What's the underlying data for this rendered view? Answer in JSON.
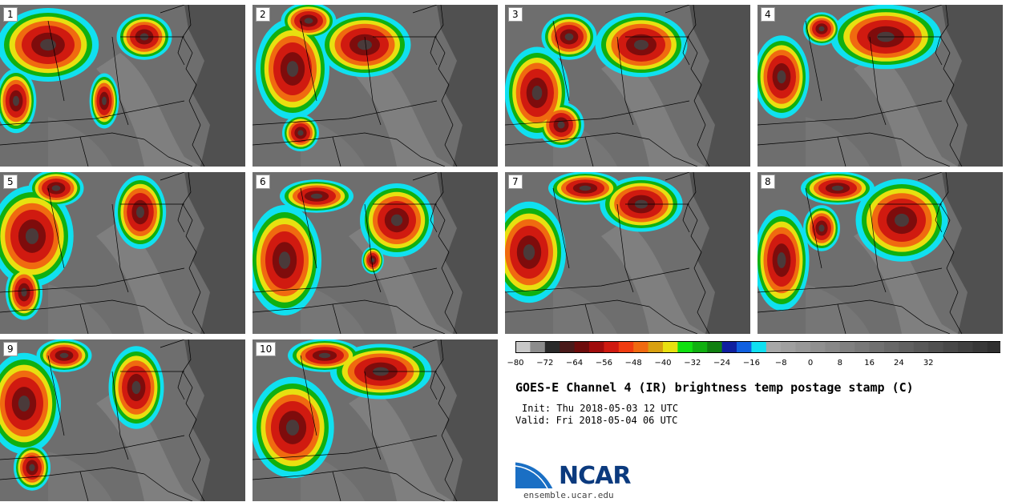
{
  "panels": [
    {
      "label": "1"
    },
    {
      "label": "2"
    },
    {
      "label": "3"
    },
    {
      "label": "4"
    },
    {
      "label": "5"
    },
    {
      "label": "6"
    },
    {
      "label": "7"
    },
    {
      "label": "8"
    },
    {
      "label": "9"
    },
    {
      "label": "10"
    }
  ],
  "colorbar": {
    "colors": [
      "#c8c8c8",
      "#8c8c8c",
      "#2a2a2a",
      "#4a1a1a",
      "#6e0c0c",
      "#a00c0c",
      "#d01a10",
      "#f03c10",
      "#f06a10",
      "#d8a010",
      "#e8e010",
      "#10e010",
      "#10b010",
      "#108010",
      "#1020a0",
      "#1060e0",
      "#10e0f0",
      "#a8a8a8",
      "#a0a0a0",
      "#989898",
      "#909090",
      "#888888",
      "#808080",
      "#787878",
      "#707070",
      "#686868",
      "#606060",
      "#585858",
      "#505050",
      "#484848",
      "#404040",
      "#383838",
      "#303030"
    ],
    "ticks": [
      "−80",
      "−72",
      "−64",
      "−56",
      "−48",
      "−40",
      "−32",
      "−24",
      "−16",
      "−8",
      "0",
      "8",
      "16",
      "24",
      "32"
    ]
  },
  "title": "GOES-E Channel 4 (IR) brightness temp postage stamp (C)",
  "init": "Init: Thu 2018-05-03 12 UTC",
  "valid": "Valid: Fri 2018-05-04 06 UTC",
  "logo_text": "NCAR",
  "website": "ensemble.ucar.edu"
}
